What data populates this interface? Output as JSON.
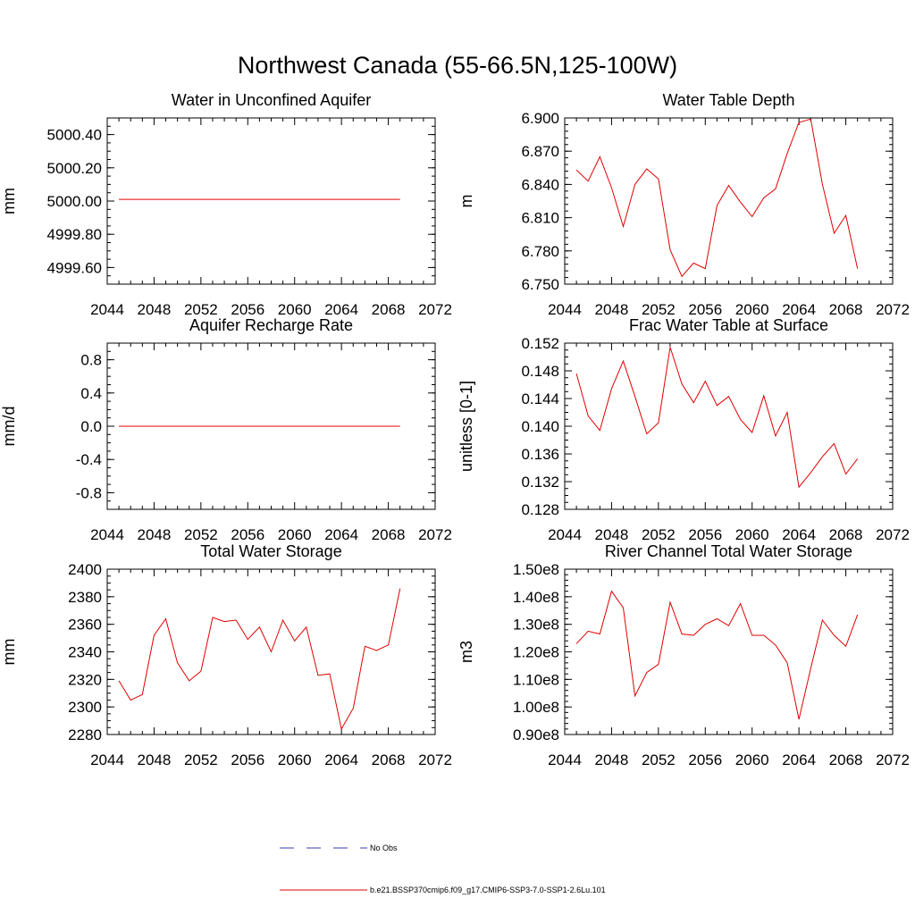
{
  "main_title": "Northwest Canada (55-66.5N,125-100W)",
  "legend": {
    "obs_label": "No Obs",
    "obs_color": "#3b3bb0",
    "model_label": "b.e21.BSSP370cmip6.f09_g17.CMIP6-SSP3-7.0-SSP1-2.6Lu.101",
    "model_color": "#e00000"
  },
  "chart_data": [
    {
      "type": "line",
      "title": "Water in Unconfined Aquifer",
      "ylabel": "mm",
      "xlim": [
        2044,
        2072
      ],
      "x_major_ticks": [
        2044,
        2048,
        2052,
        2056,
        2060,
        2064,
        2068,
        2072
      ],
      "x_tick_labels": [
        "2044",
        "2048",
        "2052",
        "2056",
        "2060",
        "2064",
        "2068",
        "2072"
      ],
      "ylim": [
        4999.5,
        5000.5
      ],
      "y_major_ticks": [
        4999.6,
        4999.8,
        5000.0,
        5000.2,
        5000.4
      ],
      "y_tick_labels": [
        "4999.60",
        "4999.80",
        "5000.00",
        "5000.20",
        "5000.40"
      ],
      "y_minor_step": 0.05,
      "series": [
        {
          "x": [
            2045,
            2046,
            2047,
            2048,
            2049,
            2050,
            2051,
            2052,
            2053,
            2054,
            2055,
            2056,
            2057,
            2058,
            2059,
            2060,
            2061,
            2062,
            2063,
            2064,
            2065,
            2066,
            2067,
            2068,
            2069
          ],
          "values": [
            5000.01,
            5000.01,
            5000.01,
            5000.01,
            5000.01,
            5000.01,
            5000.01,
            5000.01,
            5000.01,
            5000.01,
            5000.01,
            5000.01,
            5000.01,
            5000.01,
            5000.01,
            5000.01,
            5000.01,
            5000.01,
            5000.01,
            5000.01,
            5000.01,
            5000.01,
            5000.01,
            5000.01,
            5000.01
          ]
        }
      ]
    },
    {
      "type": "line",
      "title": "Water Table Depth",
      "ylabel": "m",
      "xlim": [
        2044,
        2072
      ],
      "x_major_ticks": [
        2044,
        2048,
        2052,
        2056,
        2060,
        2064,
        2068,
        2072
      ],
      "x_tick_labels": [
        "2044",
        "2048",
        "2052",
        "2056",
        "2060",
        "2064",
        "2068",
        "2072"
      ],
      "ylim": [
        6.75,
        6.9
      ],
      "y_major_ticks": [
        6.75,
        6.78,
        6.81,
        6.84,
        6.87,
        6.9
      ],
      "y_tick_labels": [
        "6.750",
        "6.780",
        "6.810",
        "6.840",
        "6.870",
        "6.900"
      ],
      "y_minor_step": 0.006,
      "series": [
        {
          "x": [
            2045,
            2046,
            2047,
            2048,
            2049,
            2050,
            2051,
            2052,
            2053,
            2054,
            2055,
            2056,
            2057,
            2058,
            2059,
            2060,
            2061,
            2062,
            2063,
            2064,
            2065,
            2066,
            2067,
            2068,
            2069
          ],
          "values": [
            6.853,
            6.843,
            6.865,
            6.837,
            6.802,
            6.84,
            6.854,
            6.845,
            6.781,
            6.757,
            6.769,
            6.764,
            6.821,
            6.839,
            6.824,
            6.811,
            6.828,
            6.836,
            6.868,
            6.896,
            6.899,
            6.84,
            6.796,
            6.812,
            6.764
          ]
        }
      ]
    },
    {
      "type": "line",
      "title": "Aquifer Recharge Rate",
      "ylabel": "mm/d",
      "xlim": [
        2044,
        2072
      ],
      "x_major_ticks": [
        2044,
        2048,
        2052,
        2056,
        2060,
        2064,
        2068,
        2072
      ],
      "x_tick_labels": [
        "2044",
        "2048",
        "2052",
        "2056",
        "2060",
        "2064",
        "2068",
        "2072"
      ],
      "ylim": [
        -1.0,
        1.0
      ],
      "y_major_ticks": [
        -0.8,
        -0.4,
        0.0,
        0.4,
        0.8
      ],
      "y_tick_labels": [
        "-0.8",
        "-0.4",
        "0.0",
        "0.4",
        "0.8"
      ],
      "y_minor_step": 0.1,
      "series": [
        {
          "x": [
            2045,
            2046,
            2047,
            2048,
            2049,
            2050,
            2051,
            2052,
            2053,
            2054,
            2055,
            2056,
            2057,
            2058,
            2059,
            2060,
            2061,
            2062,
            2063,
            2064,
            2065,
            2066,
            2067,
            2068,
            2069
          ],
          "values": [
            0,
            0,
            0,
            0,
            0,
            0,
            0,
            0,
            0,
            0,
            0,
            0,
            0,
            0,
            0,
            0,
            0,
            0,
            0,
            0,
            0,
            0,
            0,
            0,
            0
          ]
        }
      ]
    },
    {
      "type": "line",
      "title": "Frac Water Table at Surface",
      "ylabel": "unitless [0-1]",
      "xlim": [
        2044,
        2072
      ],
      "x_major_ticks": [
        2044,
        2048,
        2052,
        2056,
        2060,
        2064,
        2068,
        2072
      ],
      "x_tick_labels": [
        "2044",
        "2048",
        "2052",
        "2056",
        "2060",
        "2064",
        "2068",
        "2072"
      ],
      "ylim": [
        0.128,
        0.152
      ],
      "y_major_ticks": [
        0.128,
        0.132,
        0.136,
        0.14,
        0.144,
        0.148,
        0.152
      ],
      "y_tick_labels": [
        "0.128",
        "0.132",
        "0.136",
        "0.140",
        "0.144",
        "0.148",
        "0.152"
      ],
      "y_minor_step": 0.001,
      "series": [
        {
          "x": [
            2045,
            2046,
            2047,
            2048,
            2049,
            2050,
            2051,
            2052,
            2053,
            2054,
            2055,
            2056,
            2057,
            2058,
            2059,
            2060,
            2061,
            2062,
            2063,
            2064,
            2065,
            2066,
            2067,
            2068,
            2069
          ],
          "values": [
            0.1476,
            0.1415,
            0.1394,
            0.1454,
            0.1494,
            0.1443,
            0.1389,
            0.1405,
            0.1514,
            0.1461,
            0.1434,
            0.1465,
            0.143,
            0.1443,
            0.141,
            0.1391,
            0.1444,
            0.1386,
            0.142,
            0.1312,
            0.1333,
            0.1356,
            0.1375,
            0.1331,
            0.1353
          ]
        }
      ]
    },
    {
      "type": "line",
      "title": "Total Water Storage",
      "ylabel": "mm",
      "xlim": [
        2044,
        2072
      ],
      "x_major_ticks": [
        2044,
        2048,
        2052,
        2056,
        2060,
        2064,
        2068,
        2072
      ],
      "x_tick_labels": [
        "2044",
        "2048",
        "2052",
        "2056",
        "2060",
        "2064",
        "2068",
        "2072"
      ],
      "ylim": [
        2280,
        2400
      ],
      "y_major_ticks": [
        2280,
        2300,
        2320,
        2340,
        2360,
        2380,
        2400
      ],
      "y_tick_labels": [
        "2280",
        "2300",
        "2320",
        "2340",
        "2360",
        "2380",
        "2400"
      ],
      "y_minor_step": 5,
      "series": [
        {
          "x": [
            2045,
            2046,
            2047,
            2048,
            2049,
            2050,
            2051,
            2052,
            2053,
            2054,
            2055,
            2056,
            2057,
            2058,
            2059,
            2060,
            2061,
            2062,
            2063,
            2064,
            2065,
            2066,
            2067,
            2068,
            2069
          ],
          "values": [
            2319,
            2305,
            2309,
            2352,
            2364,
            2332,
            2319,
            2326,
            2365,
            2362,
            2363,
            2349,
            2358,
            2340,
            2363,
            2348,
            2358,
            2323,
            2324,
            2284,
            2299,
            2344,
            2341,
            2345,
            2386
          ]
        }
      ]
    },
    {
      "type": "line",
      "title": "River Channel Total Water Storage",
      "ylabel": "m3",
      "xlim": [
        2044,
        2072
      ],
      "x_major_ticks": [
        2044,
        2048,
        2052,
        2056,
        2060,
        2064,
        2068,
        2072
      ],
      "x_tick_labels": [
        "2044",
        "2048",
        "2052",
        "2056",
        "2060",
        "2064",
        "2068",
        "2072"
      ],
      "ylim": [
        90000000,
        150000000
      ],
      "y_major_ticks": [
        90000000,
        100000000,
        110000000,
        120000000,
        130000000,
        140000000,
        150000000
      ],
      "y_tick_labels": [
        "0.90e8",
        "1.00e8",
        "1.10e8",
        "1.20e8",
        "1.30e8",
        "1.40e8",
        "1.50e8"
      ],
      "y_minor_step": 2000000,
      "series": [
        {
          "x": [
            2045,
            2046,
            2047,
            2048,
            2049,
            2050,
            2051,
            2052,
            2053,
            2054,
            2055,
            2056,
            2057,
            2058,
            2059,
            2060,
            2061,
            2062,
            2063,
            2064,
            2065,
            2066,
            2067,
            2068,
            2069
          ],
          "values": [
            123000000,
            127500000,
            126500000,
            142000000,
            136000000,
            104000000,
            112500000,
            115500000,
            138000000,
            126500000,
            126000000,
            130000000,
            132000000,
            129500000,
            137500000,
            126000000,
            126000000,
            122500000,
            116000000,
            95500000,
            114000000,
            131500000,
            126000000,
            122000000,
            133500000
          ]
        }
      ]
    }
  ]
}
